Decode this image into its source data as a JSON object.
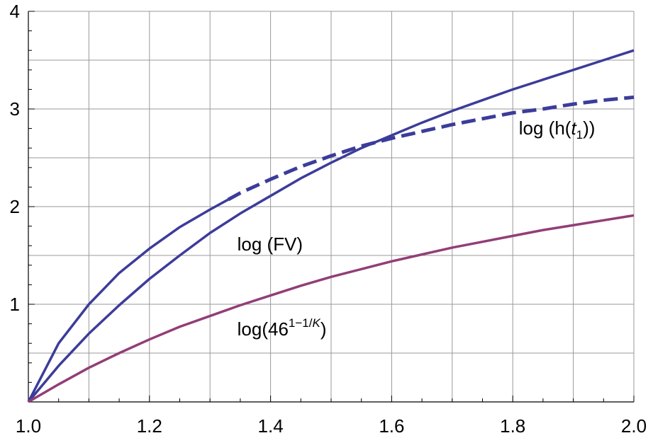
{
  "chart_data": {
    "type": "line",
    "title": "",
    "xlabel": "",
    "ylabel": "",
    "xlim": [
      1.0,
      2.0
    ],
    "ylim": [
      0,
      4
    ],
    "grid": true,
    "x_ticks": [
      1.0,
      1.2,
      1.4,
      1.6,
      1.8,
      2.0
    ],
    "x_tick_labels": [
      "1.0",
      "1.2",
      "1.4",
      "1.6",
      "1.8",
      "2.0"
    ],
    "y_ticks": [
      1,
      2,
      3,
      4
    ],
    "y_tick_labels": [
      "1",
      "2",
      "3",
      "4"
    ],
    "series": [
      {
        "color": "#3c3c9a",
        "style": "solid-then-dashed",
        "dash_from_x": 1.33,
        "x": [
          1.0,
          1.05,
          1.1,
          1.15,
          1.2,
          1.25,
          1.3,
          1.35,
          1.4,
          1.45,
          1.5,
          1.55,
          1.6,
          1.65,
          1.7,
          1.75,
          1.8,
          1.85,
          1.9,
          1.95,
          2.0
        ],
        "y": [
          0.0,
          0.6,
          1.0,
          1.32,
          1.57,
          1.79,
          1.97,
          2.14,
          2.28,
          2.41,
          2.52,
          2.62,
          2.7,
          2.77,
          2.84,
          2.9,
          2.96,
          3.0,
          3.05,
          3.09,
          3.12
        ]
      },
      {
        "color": "#3c3c9a",
        "style": "solid",
        "x": [
          1.0,
          1.05,
          1.1,
          1.15,
          1.2,
          1.25,
          1.3,
          1.35,
          1.4,
          1.45,
          1.5,
          1.55,
          1.6,
          1.65,
          1.7,
          1.75,
          1.8,
          1.85,
          1.9,
          1.95,
          2.0
        ],
        "y": [
          0.0,
          0.37,
          0.7,
          0.99,
          1.26,
          1.5,
          1.73,
          1.93,
          2.11,
          2.29,
          2.45,
          2.6,
          2.73,
          2.86,
          2.98,
          3.09,
          3.2,
          3.3,
          3.4,
          3.5,
          3.6
        ]
      },
      {
        "color": "#923e77",
        "style": "solid",
        "x": [
          1.0,
          1.05,
          1.1,
          1.15,
          1.2,
          1.25,
          1.3,
          1.35,
          1.4,
          1.45,
          1.5,
          1.55,
          1.6,
          1.65,
          1.7,
          1.75,
          1.8,
          1.85,
          1.9,
          1.95,
          2.0
        ],
        "y": [
          0.0,
          0.18,
          0.35,
          0.5,
          0.64,
          0.77,
          0.88,
          0.99,
          1.09,
          1.19,
          1.28,
          1.36,
          1.44,
          1.51,
          1.58,
          1.64,
          1.7,
          1.76,
          1.81,
          1.86,
          1.91
        ]
      }
    ],
    "annotations": [
      {
        "id": "h",
        "x": 1.81,
        "y": 2.74,
        "parts": [
          "log",
          " (h(",
          "t",
          "1",
          "))"
        ]
      },
      {
        "id": "fv",
        "x": 1.345,
        "y": 1.55,
        "parts": [
          "log",
          " (FV)"
        ]
      },
      {
        "id": "k",
        "x": 1.345,
        "y": 0.68,
        "parts": [
          "log(46",
          "1−1/",
          "K",
          ")"
        ]
      }
    ]
  }
}
